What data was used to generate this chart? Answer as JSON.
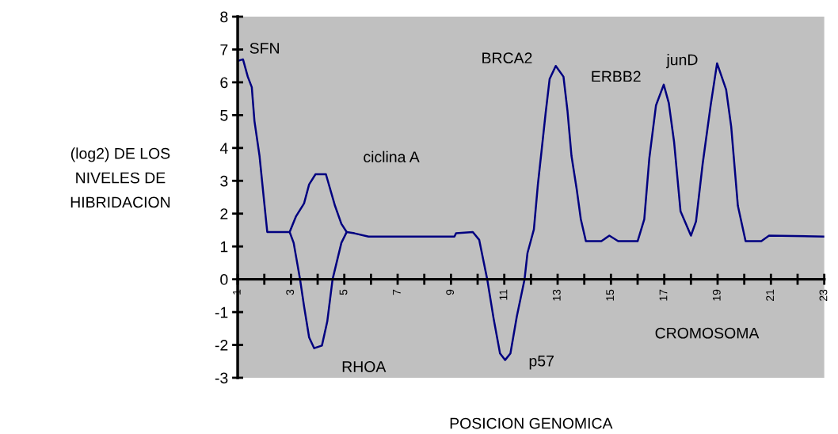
{
  "chart_data": {
    "type": "line",
    "xlabel": "POSICION GENOMICA",
    "ylabel": "(log2) DE LOS\nNIVELES DE\nHIBRIDACION",
    "xlim": [
      1,
      23
    ],
    "ylim": [
      -3,
      8
    ],
    "xticks": [
      1,
      {
        "value": 2,
        "label": null
      },
      3,
      {
        "value": 4,
        "label": null
      },
      5,
      {
        "value": 6,
        "label": null
      },
      7,
      {
        "value": 8,
        "label": null
      },
      9,
      {
        "value": 10,
        "label": null
      },
      11,
      {
        "value": 12,
        "label": null
      },
      13,
      {
        "value": 14,
        "label": null
      },
      15,
      {
        "value": 16,
        "label": null
      },
      17,
      {
        "value": 18,
        "label": null
      },
      19,
      {
        "value": 20,
        "label": null
      },
      21,
      {
        "value": 22,
        "label": null
      },
      23
    ],
    "yticks": [
      -3,
      -2,
      -1,
      0,
      1,
      2,
      3,
      4,
      5,
      6,
      7,
      8
    ],
    "grid": false,
    "legend": false,
    "marker": "none",
    "line_style": "solid",
    "series": [
      {
        "color": "#000080",
        "x": [
          1.0,
          1.2,
          1.38,
          1.53,
          1.63,
          1.82,
          1.97,
          2.11,
          2.95,
          3.19,
          3.49,
          3.68,
          3.92,
          4.31,
          4.65,
          4.89,
          5.09,
          5.38,
          5.91,
          9.13,
          9.19,
          9.82,
          10.06,
          10.36,
          10.6,
          10.84,
          11.03,
          11.23,
          11.47,
          11.76,
          11.87,
          12.11,
          12.26,
          12.4,
          12.55,
          12.7,
          12.93,
          13.22,
          13.37,
          13.52,
          13.72,
          13.87,
          14.06,
          14.64,
          14.94,
          15.27,
          16.0,
          16.25,
          16.44,
          16.69,
          16.98,
          17.17,
          17.37,
          17.61,
          18.0,
          18.19,
          18.44,
          18.74,
          18.98,
          19.32,
          19.51,
          19.76,
          20.05,
          20.64,
          20.93,
          22.98
        ],
        "values": [
          6.65,
          6.7,
          6.17,
          5.85,
          4.82,
          3.76,
          2.55,
          1.44,
          1.44,
          1.92,
          2.31,
          2.89,
          3.2,
          3.2,
          2.24,
          1.69,
          1.44,
          1.4,
          1.3,
          1.3,
          1.4,
          1.44,
          1.2,
          0,
          -1.2,
          -2.26,
          -2.46,
          -2.26,
          -1.13,
          0,
          0.8,
          1.52,
          2.89,
          3.93,
          5.06,
          6.1,
          6.5,
          6.17,
          5.13,
          3.76,
          2.72,
          1.83,
          1.16,
          1.16,
          1.33,
          1.16,
          1.16,
          1.83,
          3.69,
          5.3,
          5.93,
          5.37,
          4.17,
          2.07,
          1.33,
          1.76,
          3.52,
          5.3,
          6.58,
          5.78,
          4.65,
          2.24,
          1.16,
          1.16,
          1.33,
          1.3
        ]
      },
      {
        "color": "#000080",
        "x": [
          2.95,
          3.1,
          3.34,
          3.49,
          3.68,
          3.87,
          4.16,
          4.36,
          4.56,
          4.89,
          5.09
        ],
        "values": [
          1.44,
          1.11,
          0,
          -0.82,
          -1.77,
          -2.1,
          -2.02,
          -1.29,
          0,
          1.11,
          1.44
        ]
      }
    ],
    "annotations": [
      "SFN",
      "ciclina A",
      "BRCA2",
      "ERBB2",
      "junD",
      "RHOA",
      "p57",
      "CROMOSOMA"
    ]
  }
}
